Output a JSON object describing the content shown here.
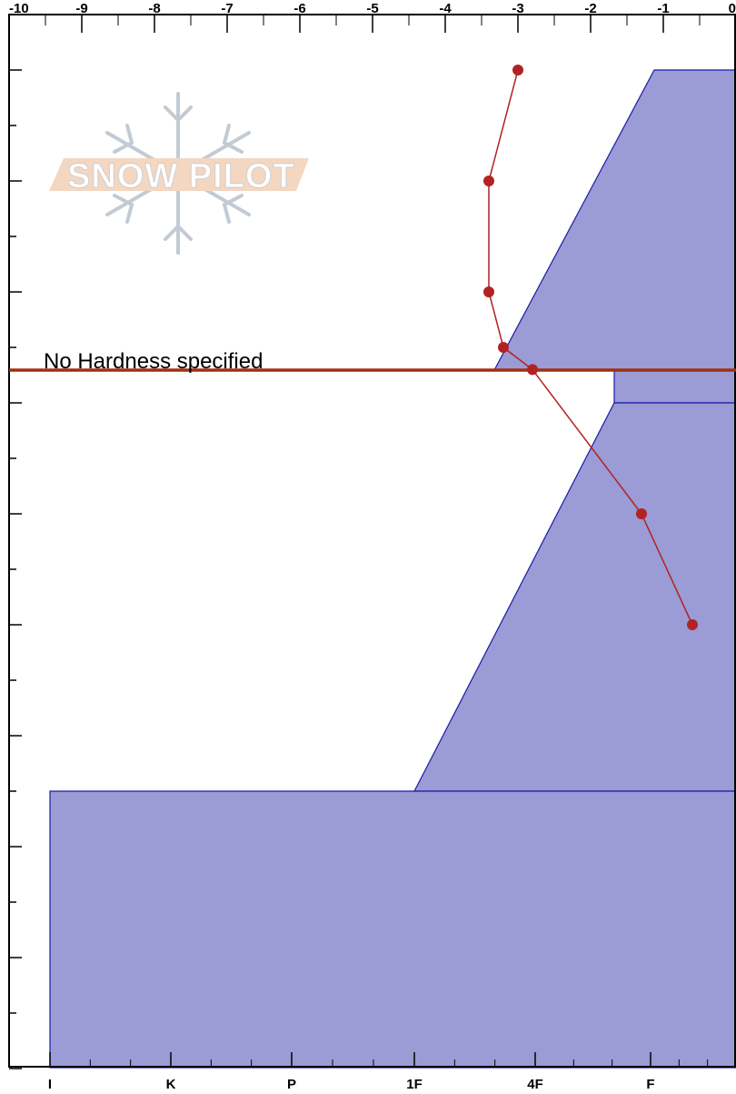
{
  "chart_data": {
    "type": "line",
    "title": "",
    "top_axis": {
      "ticks": [
        -10,
        -9,
        -8,
        -7,
        -6,
        -5,
        -4,
        -3,
        -2,
        -1,
        0
      ],
      "labels": [
        "-10",
        "-9",
        "-8",
        "-7",
        "-6",
        "-5",
        "-4",
        "-3",
        "-2",
        "-1",
        "0"
      ],
      "range": [
        -10,
        0
      ]
    },
    "bottom_axis": {
      "hardness_labels": [
        "I",
        "K",
        "P",
        "1F",
        "4F",
        "F"
      ],
      "range": [
        "I",
        "F"
      ]
    },
    "annotation": "No Hardness specified",
    "logo_text": "SNOW PILOT",
    "series": [
      {
        "kind": "temperature_profile",
        "color": "#b22222",
        "points": [
          {
            "temp": -3.0,
            "row": 0
          },
          {
            "temp": -3.4,
            "row": 2
          },
          {
            "temp": -3.4,
            "row": 4
          },
          {
            "temp": -3.2,
            "row": 5
          },
          {
            "temp": -2.8,
            "row": 5.4
          },
          {
            "temp": -1.3,
            "row": 8
          },
          {
            "temp": -0.6,
            "row": 10
          }
        ]
      }
    ],
    "colors": {
      "layer_fill": "#9b9bd6",
      "layer_stroke": "#1a1aa8",
      "marker_line": "#a0300f",
      "temp_line": "#b22222"
    }
  }
}
